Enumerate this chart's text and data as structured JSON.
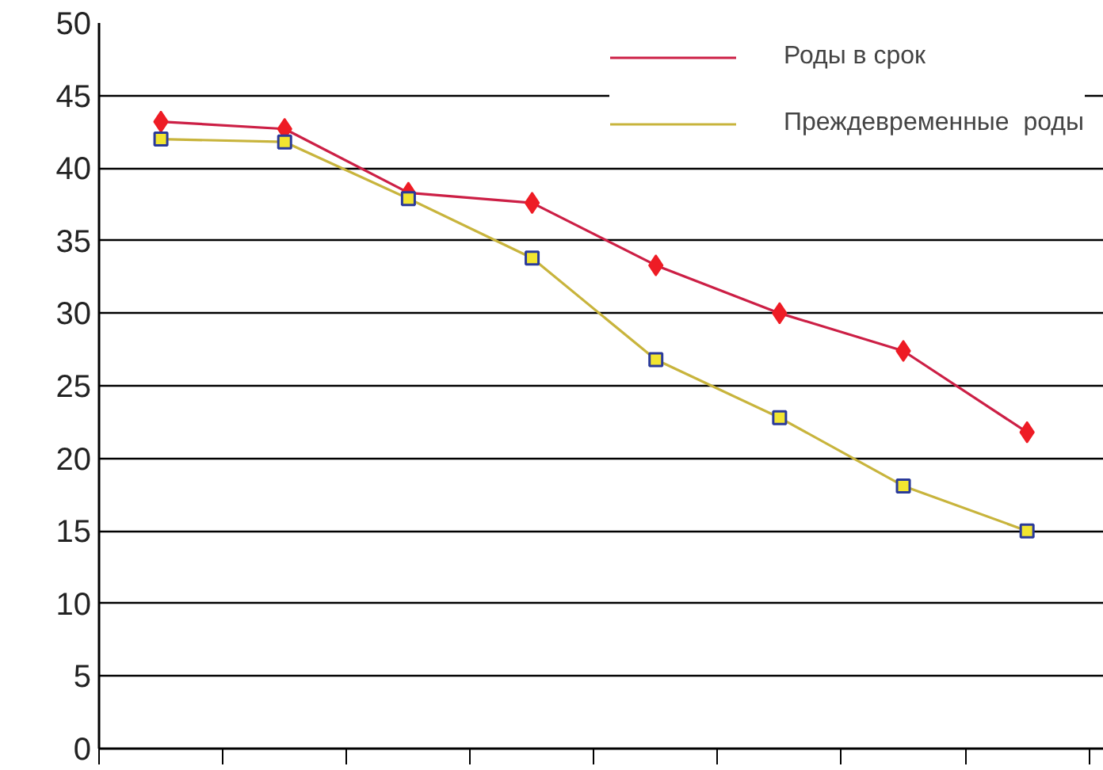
{
  "chart_data": {
    "type": "line",
    "categories": [
      null,
      null,
      null,
      null,
      null,
      null,
      null,
      null
    ],
    "series": [
      {
        "name": "Роды в срок",
        "color": "#cc1f45",
        "marker": "diamond",
        "values": [
          43.2,
          42.7,
          38.3,
          37.6,
          33.3,
          30.0,
          27.4,
          21.8
        ]
      },
      {
        "name": "Преждевременные  роды",
        "color": "#c8b43c",
        "marker": "square",
        "values": [
          42.0,
          41.8,
          37.9,
          33.8,
          26.8,
          22.8,
          18.1,
          15.0
        ]
      }
    ],
    "ylim": [
      0,
      50
    ],
    "yticks": [
      0,
      5,
      10,
      15,
      20,
      25,
      30,
      35,
      40,
      45,
      50
    ],
    "grid": "y",
    "legend": "top right",
    "line_style": "solid"
  }
}
